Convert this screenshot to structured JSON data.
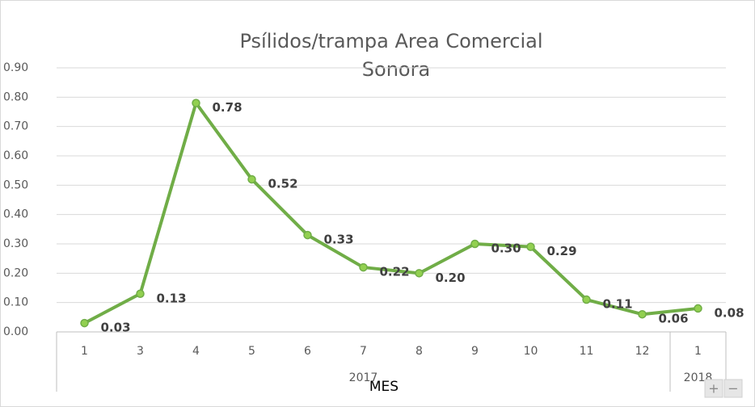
{
  "chart_data": {
    "type": "line",
    "title": [
      "Psílidos/trampa Area Comercial",
      "Sonora"
    ],
    "x_label": "MES",
    "categories": [
      "1",
      "3",
      "4",
      "5",
      "6",
      "7",
      "8",
      "9",
      "10",
      "11",
      "12",
      "1"
    ],
    "groups": [
      {
        "name": "2017",
        "count": 11
      },
      {
        "name": "2018",
        "count": 1
      }
    ],
    "series": [
      {
        "name": "Psílidos/trampa",
        "color": "#70ad47",
        "marker_color": "#92d050",
        "values": [
          0.03,
          0.13,
          0.78,
          0.52,
          0.33,
          0.22,
          0.2,
          0.3,
          0.29,
          0.11,
          0.06,
          0.08
        ],
        "value_labels": [
          "0.03",
          "0.13",
          "0.78",
          "0.52",
          "0.33",
          "0.22",
          "0.20",
          "0.30",
          "0.29",
          "0.11",
          "0.06",
          "0.08"
        ]
      }
    ],
    "ylim": [
      0,
      0.9
    ],
    "yticks": [
      {
        "value": 0,
        "label": "0.00"
      },
      {
        "value": 0.1,
        "label": "0.10"
      },
      {
        "value": 0.2,
        "label": "0.20"
      },
      {
        "value": 0.3,
        "label": "0.30"
      },
      {
        "value": 0.4,
        "label": "0.40"
      },
      {
        "value": 0.5,
        "label": "0.50"
      },
      {
        "value": 0.6,
        "label": "0.60"
      },
      {
        "value": 0.7,
        "label": "0.70"
      },
      {
        "value": 0.8,
        "label": "0.80"
      },
      {
        "value": 0.9,
        "label": "0.90"
      }
    ],
    "grid": true,
    "zoom_controls": [
      "+",
      "−"
    ]
  }
}
